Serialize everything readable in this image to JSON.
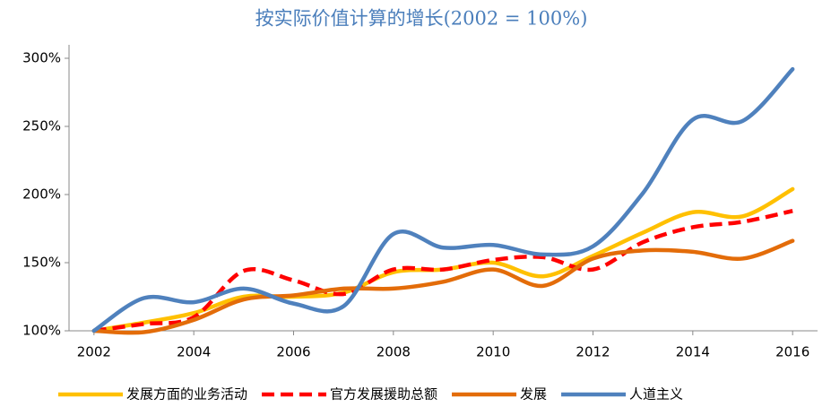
{
  "chart_data": {
    "type": "line",
    "title": "按实际价值计算的增长(2002 = 100%)",
    "x": [
      2002,
      2003,
      2004,
      2005,
      2006,
      2007,
      2008,
      2009,
      2010,
      2011,
      2012,
      2013,
      2014,
      2015,
      2016
    ],
    "xlim": [
      2001.5,
      2016.5
    ],
    "xticks": [
      2002,
      2004,
      2006,
      2008,
      2010,
      2012,
      2014,
      2016
    ],
    "ylim": [
      100,
      300
    ],
    "yticks": [
      {
        "value": 100,
        "label": "100%"
      },
      {
        "value": 150,
        "label": "150%"
      },
      {
        "value": 200,
        "label": "200%"
      },
      {
        "value": 250,
        "label": "250%"
      },
      {
        "value": 300,
        "label": "300%"
      }
    ],
    "legend": "bottom",
    "series": [
      {
        "name": "发展方面的业务活动",
        "color": "#ffc000",
        "dash": false,
        "values": [
          100,
          106,
          113,
          125,
          125,
          128,
          143,
          145,
          150,
          140,
          155,
          172,
          187,
          184,
          204
        ]
      },
      {
        "name": "官方发展援助总额",
        "color": "#ff0000",
        "dash": true,
        "values": [
          100,
          105,
          110,
          144,
          137,
          127,
          145,
          145,
          152,
          154,
          145,
          165,
          176,
          180,
          188
        ]
      },
      {
        "name": "发展",
        "color": "#e36c09",
        "dash": false,
        "values": [
          100,
          99,
          108,
          123,
          126,
          131,
          131,
          136,
          145,
          133,
          153,
          159,
          158,
          153,
          166
        ]
      },
      {
        "name": "人道主义",
        "color": "#4f81bd",
        "dash": false,
        "values": [
          100,
          124,
          121,
          131,
          120,
          118,
          171,
          161,
          163,
          156,
          162,
          201,
          255,
          254,
          292
        ]
      }
    ]
  }
}
